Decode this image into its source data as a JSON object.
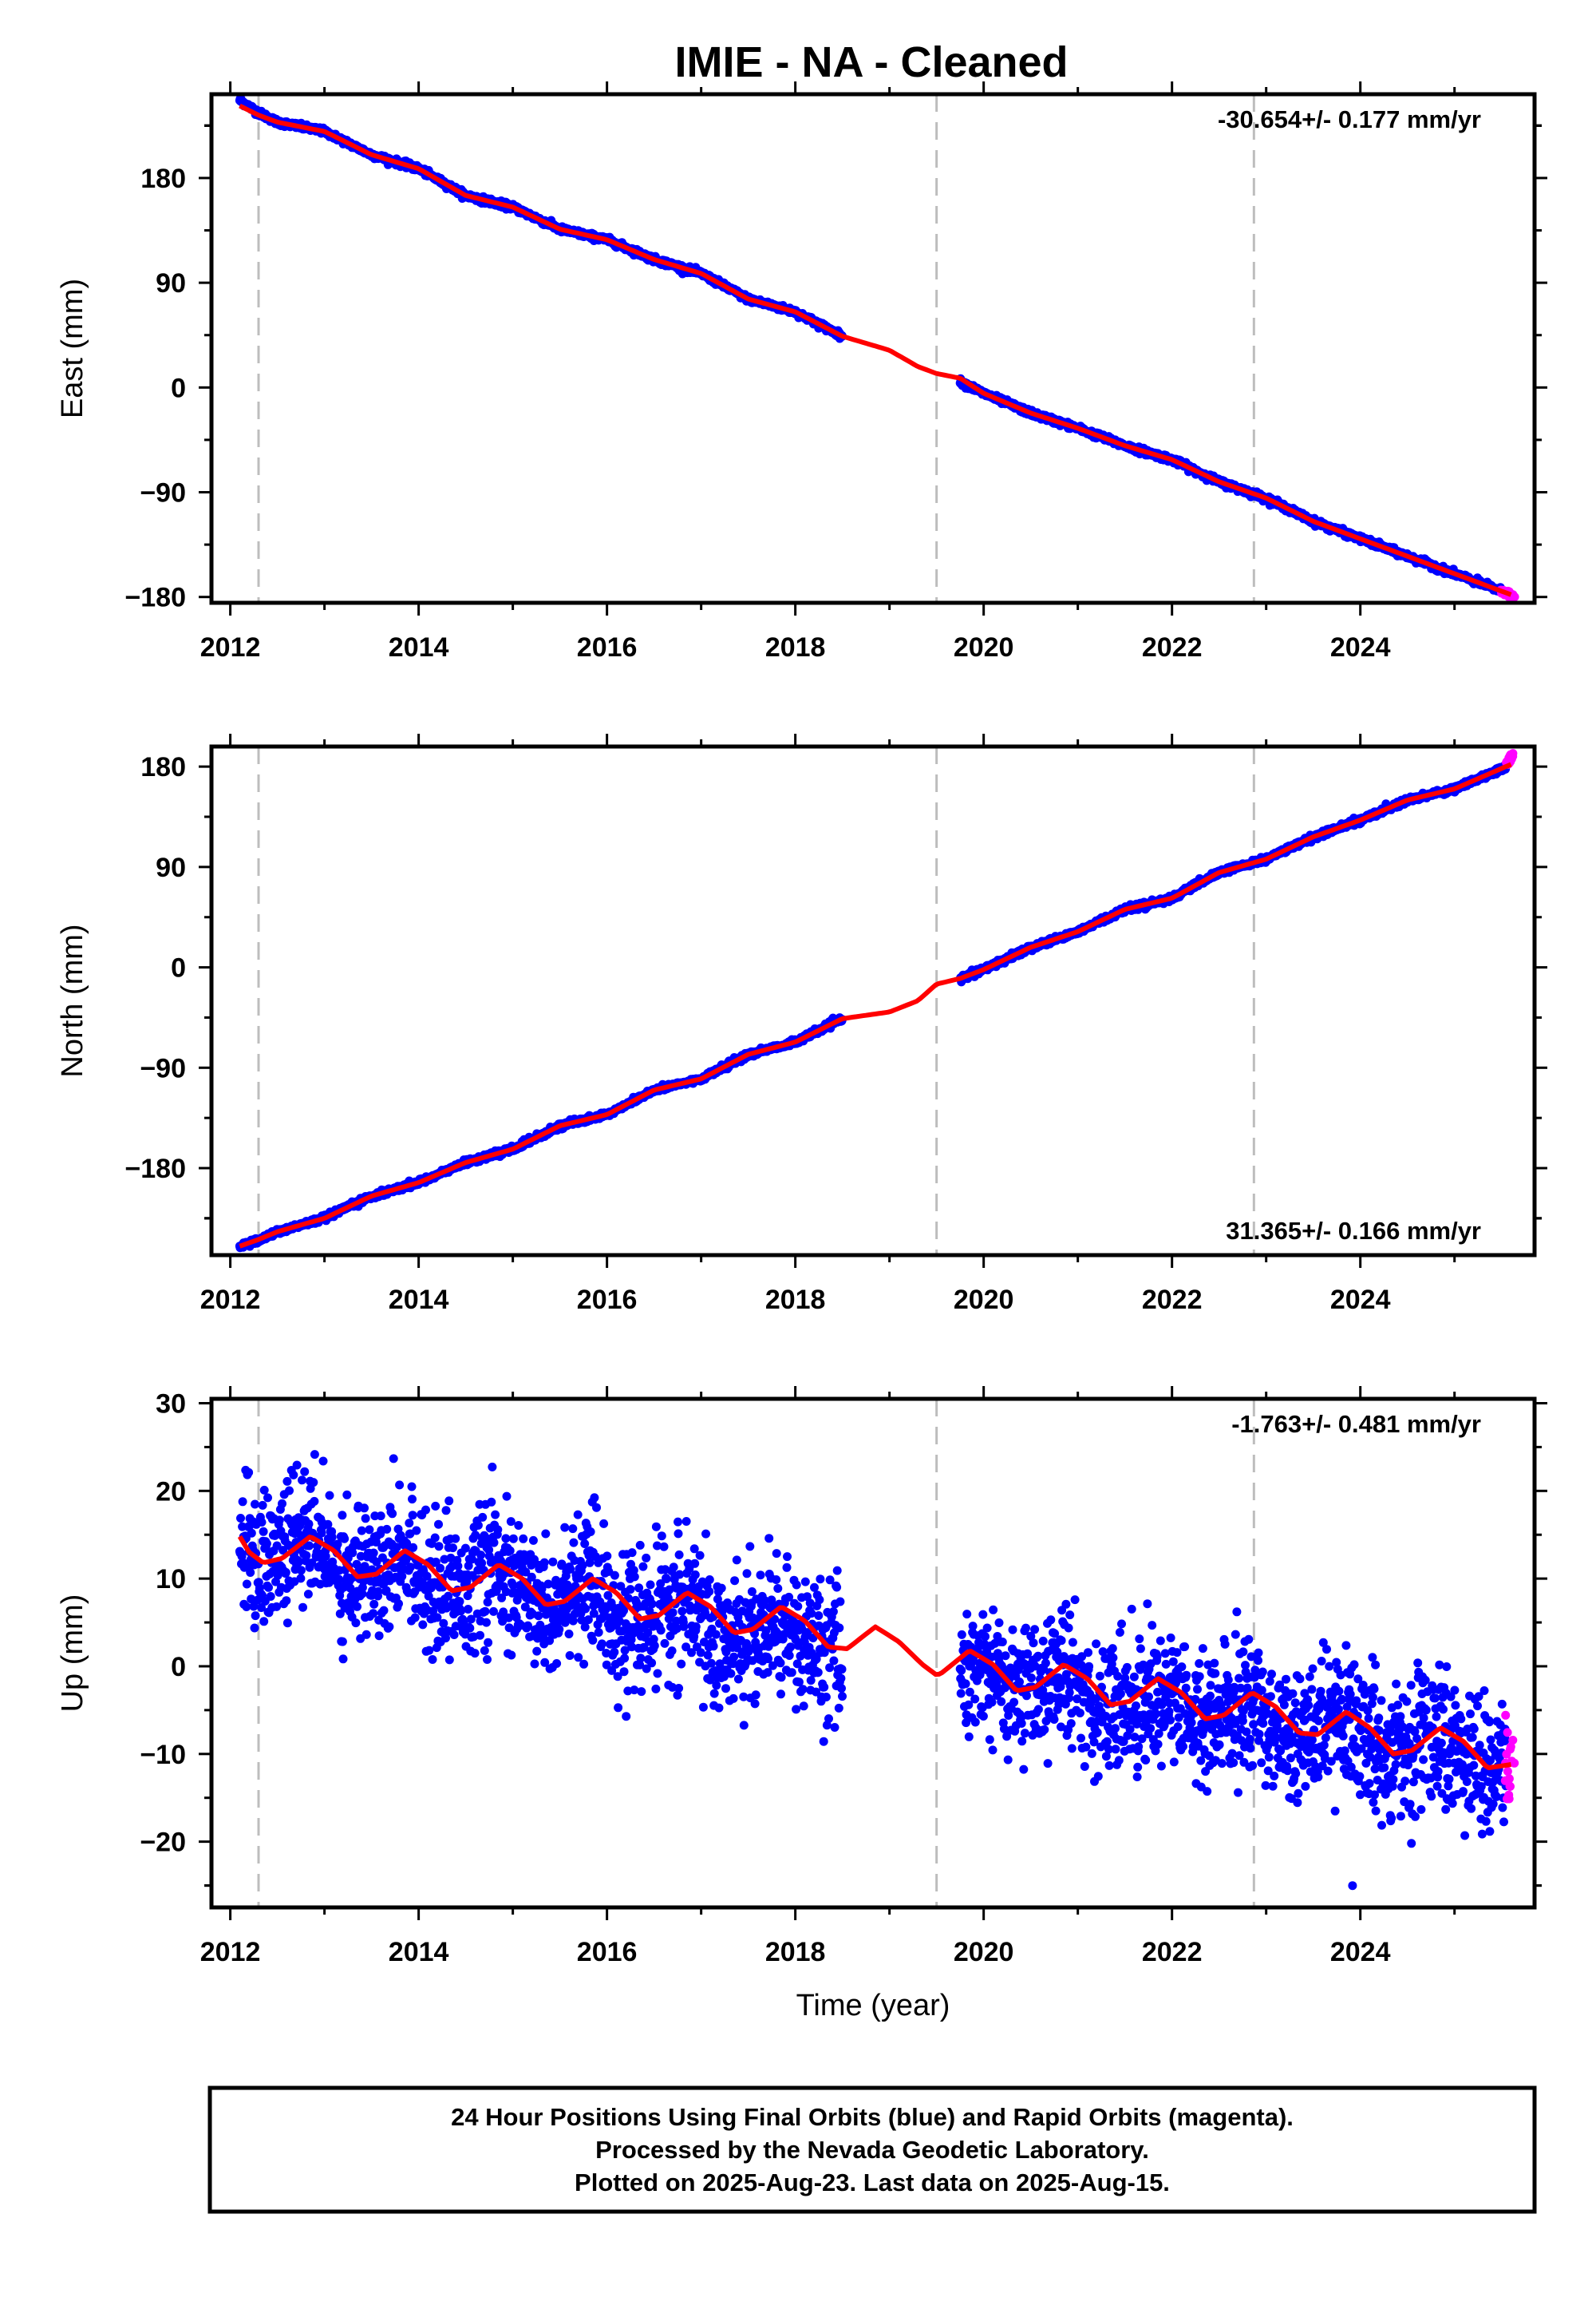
{
  "chart_data": [
    {
      "type": "scatter",
      "title": "IMIE  - NA - Cleaned",
      "ylabel": "East (mm)",
      "xlabel": "",
      "rate": "-30.654+/- 0.177 mm/yr",
      "xlim": [
        2011.8,
        2025.85
      ],
      "ylim": [
        -185,
        252
      ],
      "x_ticks": [
        2012,
        2014,
        2016,
        2018,
        2020,
        2022,
        2024
      ],
      "y_ticks": [
        -180,
        -90,
        0,
        90,
        180
      ],
      "y_tick_labels": [
        "−180",
        "−90",
        "0",
        "90",
        "180"
      ],
      "event_lines": [
        2012.3,
        2019.5,
        2022.87
      ],
      "data_gap": [
        2018.5,
        2019.75
      ],
      "series": [
        {
          "kind": "final_orbits",
          "color": "#0000ff",
          "noise": 3,
          "x": [
            2012.1,
            2012.3,
            2012.5,
            2013.0,
            2013.5,
            2014.0,
            2014.5,
            2015.0,
            2015.5,
            2016.0,
            2016.5,
            2017.0,
            2017.5,
            2018.0,
            2018.5,
            2019.75,
            2020.0,
            2020.5,
            2021.0,
            2021.5,
            2022.0,
            2022.5,
            2023.0,
            2023.5,
            2024.0,
            2024.5,
            2025.0,
            2025.5
          ],
          "y": [
            247,
            236,
            228,
            220,
            200,
            188,
            165,
            155,
            136,
            127,
            110,
            98,
            76,
            65,
            44,
            5,
            -5,
            -22,
            -35,
            -50,
            -62,
            -81,
            -95,
            -115,
            -130,
            -145,
            -160,
            -175
          ]
        },
        {
          "kind": "rapid_orbits",
          "color": "#ff00ff",
          "noise": 3,
          "x": [
            2025.5,
            2025.62
          ],
          "y": [
            -175,
            -180
          ]
        },
        {
          "kind": "model",
          "color": "#ff0000",
          "x": [
            2012.1,
            2012.3,
            2012.5,
            2013.0,
            2013.5,
            2014.0,
            2014.5,
            2015.0,
            2015.5,
            2016.0,
            2016.5,
            2017.0,
            2017.5,
            2018.0,
            2018.5,
            2019.0,
            2019.3,
            2019.5,
            2019.75,
            2020.0,
            2020.5,
            2021.0,
            2021.5,
            2022.0,
            2022.5,
            2023.0,
            2023.5,
            2024.0,
            2024.5,
            2025.0,
            2025.6
          ],
          "y": [
            242,
            234,
            228,
            220,
            200,
            188,
            165,
            155,
            136,
            127,
            110,
            98,
            76,
            65,
            44,
            32,
            18,
            12,
            8,
            -5,
            -22,
            -35,
            -50,
            -62,
            -81,
            -95,
            -115,
            -130,
            -145,
            -160,
            -178
          ]
        }
      ]
    },
    {
      "type": "scatter",
      "title": "",
      "ylabel": "North (mm)",
      "xlabel": "",
      "rate": "31.365+/- 0.166 mm/yr",
      "xlim": [
        2011.8,
        2025.85
      ],
      "ylim": [
        -258,
        198
      ],
      "x_ticks": [
        2012,
        2014,
        2016,
        2018,
        2020,
        2022,
        2024
      ],
      "y_ticks": [
        -180,
        -90,
        0,
        90,
        180
      ],
      "y_tick_labels": [
        "−180",
        "−90",
        "0",
        "90",
        "180"
      ],
      "event_lines": [
        2012.3,
        2019.5,
        2022.87
      ],
      "data_gap": [
        2018.5,
        2019.75
      ],
      "series": [
        {
          "kind": "final_orbits",
          "color": "#0000ff",
          "noise": 3,
          "x": [
            2012.1,
            2012.3,
            2012.5,
            2013.0,
            2013.5,
            2014.0,
            2014.5,
            2015.0,
            2015.5,
            2016.0,
            2016.5,
            2017.0,
            2017.5,
            2018.0,
            2018.5,
            2019.75,
            2020.0,
            2020.5,
            2021.0,
            2021.5,
            2022.0,
            2022.5,
            2023.0,
            2023.5,
            2024.0,
            2024.5,
            2025.0,
            2025.55
          ],
          "y": [
            -250,
            -245,
            -237,
            -225,
            -205,
            -193,
            -175,
            -163,
            -142,
            -132,
            -110,
            -100,
            -78,
            -67,
            -46,
            -10,
            -2,
            18,
            32,
            52,
            62,
            85,
            97,
            117,
            132,
            150,
            160,
            180
          ]
        },
        {
          "kind": "rapid_orbits",
          "color": "#ff00ff",
          "noise": 3,
          "x": [
            2025.55,
            2025.62
          ],
          "y": [
            182,
            190
          ]
        },
        {
          "kind": "model",
          "color": "#ff0000",
          "x": [
            2012.1,
            2012.3,
            2012.5,
            2013.0,
            2013.5,
            2014.0,
            2014.5,
            2015.0,
            2015.5,
            2016.0,
            2016.5,
            2017.0,
            2017.5,
            2018.0,
            2018.5,
            2019.0,
            2019.3,
            2019.5,
            2019.75,
            2020.0,
            2020.5,
            2021.0,
            2021.5,
            2022.0,
            2022.5,
            2023.0,
            2023.5,
            2024.0,
            2024.5,
            2025.0,
            2025.6
          ],
          "y": [
            -250,
            -244,
            -237,
            -225,
            -205,
            -193,
            -175,
            -163,
            -142,
            -132,
            -110,
            -100,
            -78,
            -67,
            -46,
            -40,
            -30,
            -15,
            -10,
            -2,
            18,
            32,
            52,
            62,
            85,
            97,
            117,
            132,
            150,
            160,
            182
          ]
        }
      ]
    },
    {
      "type": "scatter",
      "title": "",
      "ylabel": "Up (mm)",
      "xlabel": "Time (year)",
      "rate": "-1.763+/- 0.481 mm/yr",
      "xlim": [
        2011.8,
        2025.85
      ],
      "ylim": [
        -27.5,
        30.5
      ],
      "x_ticks": [
        2012,
        2014,
        2016,
        2018,
        2020,
        2022,
        2024
      ],
      "y_ticks": [
        -20,
        -10,
        0,
        10,
        20,
        30
      ],
      "y_tick_labels": [
        "−20",
        "−10",
        "0",
        "10",
        "20",
        "30"
      ],
      "event_lines": [
        2012.3,
        2019.5,
        2022.87
      ],
      "data_gap": [
        2018.5,
        2019.75
      ],
      "series": [
        {
          "kind": "final_orbits",
          "color": "#0000ff",
          "noise": 9,
          "x": [
            2012.1,
            2012.3,
            2012.5,
            2012.8,
            2013.0,
            2013.3,
            2013.6,
            2013.8,
            2014.0,
            2014.3,
            2014.6,
            2014.8,
            2015.0,
            2015.3,
            2015.6,
            2015.8,
            2016.0,
            2016.3,
            2016.6,
            2016.8,
            2017.0,
            2017.3,
            2017.6,
            2017.8,
            2018.0,
            2018.3,
            2018.5,
            2019.75,
            2020.0,
            2020.3,
            2020.6,
            2020.8,
            2021.0,
            2021.3,
            2021.6,
            2021.8,
            2022.0,
            2022.3,
            2022.6,
            2022.8,
            2023.0,
            2023.3,
            2023.6,
            2023.8,
            2024.0,
            2024.3,
            2024.6,
            2024.8,
            2025.0,
            2025.3,
            2025.55
          ],
          "y": [
            14.5,
            12,
            12.5,
            15,
            13,
            10.5,
            11.5,
            13.5,
            11,
            8.5,
            9.5,
            11.5,
            9,
            6.5,
            7.5,
            9.5,
            7,
            4.5,
            5.5,
            7.5,
            5,
            2.5,
            3.5,
            5.5,
            3,
            1,
            2,
            0,
            0,
            -3,
            -2,
            -0.5,
            -2,
            -5,
            -4,
            -2.5,
            -4,
            -6.5,
            -5.5,
            -4,
            -5.5,
            -8.5,
            -7.5,
            -6,
            -7.5,
            -10,
            -9,
            -7.5,
            -9,
            -11.5,
            -11
          ]
        },
        {
          "kind": "rapid_orbits",
          "color": "#ff00ff",
          "noise": 9,
          "x": [
            2025.55,
            2025.62
          ],
          "y": [
            -13,
            -15
          ]
        },
        {
          "kind": "model",
          "color": "#ff0000",
          "x": [
            2012.1,
            2012.2,
            2012.35,
            2012.55,
            2012.85,
            2013.1,
            2013.35,
            2013.55,
            2013.85,
            2014.1,
            2014.35,
            2014.55,
            2014.85,
            2015.1,
            2015.35,
            2015.55,
            2015.85,
            2016.1,
            2016.35,
            2016.55,
            2016.85,
            2017.1,
            2017.35,
            2017.55,
            2017.85,
            2018.1,
            2018.35,
            2018.55,
            2018.85,
            2019.1,
            2019.35,
            2019.5,
            2019.55,
            2019.85,
            2020.1,
            2020.35,
            2020.55,
            2020.85,
            2021.1,
            2021.35,
            2021.55,
            2021.85,
            2022.1,
            2022.35,
            2022.55,
            2022.85,
            2023.1,
            2023.35,
            2023.55,
            2023.85,
            2024.1,
            2024.35,
            2024.55,
            2024.85,
            2025.1,
            2025.35,
            2025.6
          ],
          "y": [
            14.8,
            13,
            11.8,
            12.3,
            14.8,
            13.2,
            10.2,
            10.5,
            13.2,
            11.6,
            8.6,
            9.0,
            11.6,
            10.0,
            7.0,
            7.4,
            10.0,
            8.4,
            5.4,
            5.8,
            8.4,
            6.8,
            3.8,
            4.2,
            6.8,
            5.2,
            2.2,
            2.0,
            4.5,
            2.8,
            0.2,
            -1.0,
            -0.8,
            1.8,
            0.2,
            -2.8,
            -2.4,
            0.2,
            -1.4,
            -4.4,
            -4.0,
            -1.4,
            -3.0,
            -6.0,
            -5.6,
            -3.0,
            -4.6,
            -7.6,
            -7.8,
            -5.2,
            -7.0,
            -10.0,
            -9.6,
            -7.0,
            -8.6,
            -11.6,
            -11.2
          ]
        }
      ]
    }
  ],
  "footer": {
    "line1": "24 Hour Positions Using Final Orbits (blue) and Rapid Orbits (magenta).",
    "line2": "Processed by the Nevada Geodetic Laboratory.",
    "line3": "Plotted on 2025-Aug-23. Last data on 2025-Aug-15."
  }
}
